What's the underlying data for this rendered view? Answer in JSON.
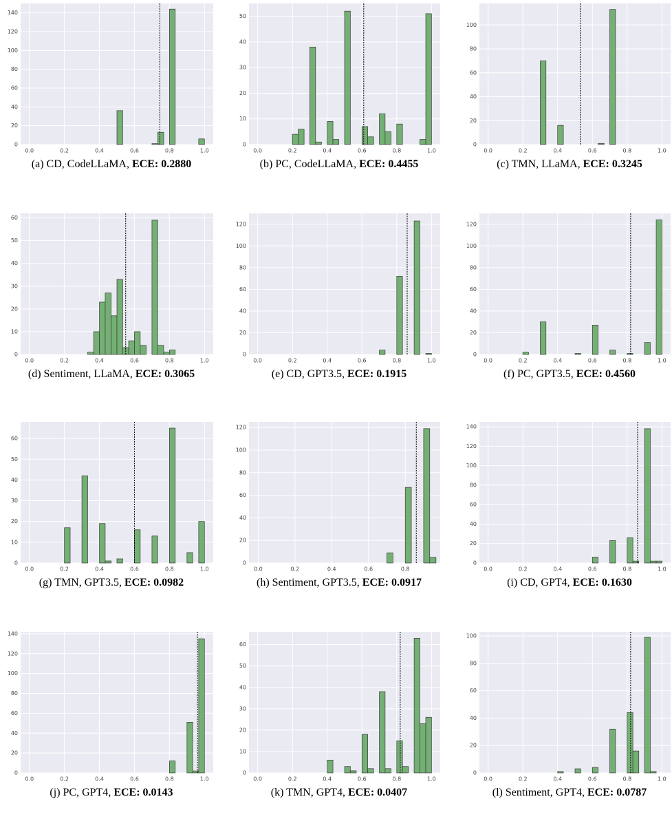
{
  "chart_data": [
    {
      "type": "histogram",
      "caption": "(a) CD, CodeLLaMA,",
      "ece": "ECE: 0.2880",
      "color": "#74b074",
      "bins": [
        0.5,
        0.533,
        0.7,
        0.733,
        0.767,
        0.8,
        0.833,
        0.967,
        1.0
      ],
      "counts": [
        36,
        0,
        1,
        13,
        0,
        144,
        0,
        6
      ],
      "reference_line": 0.745,
      "xlim": [
        -0.05,
        1.05
      ],
      "ylim": [
        0,
        150
      ],
      "xticks": [
        {
          "value": 0,
          "label": "0.0"
        },
        0.2,
        0.4,
        0.6,
        0.8,
        {
          "value": 1,
          "label": "1.0"
        }
      ],
      "yticks": [
        0,
        20,
        40,
        60,
        80,
        100,
        120,
        140
      ],
      "grid": true
    },
    {
      "type": "histogram",
      "caption": "(b) PC, CodeLLaMA,",
      "ece": "ECE: 0.4455",
      "color": "#74b074",
      "bins": [
        0.2,
        0.233,
        0.267,
        0.3,
        0.333,
        0.367,
        0.4,
        0.433,
        0.467,
        0.5,
        0.533,
        0.6,
        0.633,
        0.667,
        0.7,
        0.733,
        0.767,
        0.8,
        0.833,
        0.933,
        0.967,
        1.0
      ],
      "counts": [
        4,
        6,
        0,
        38,
        1,
        0,
        9,
        2,
        0,
        52,
        0,
        7,
        3,
        0,
        12,
        5,
        0,
        8,
        0,
        2,
        51
      ],
      "reference_line": 0.61,
      "xlim": [
        -0.05,
        1.05
      ],
      "ylim": [
        0,
        55
      ],
      "xticks": [
        {
          "value": 0,
          "label": "0.0"
        },
        0.2,
        0.4,
        0.6,
        0.8,
        {
          "value": 1,
          "label": "1.0"
        }
      ],
      "yticks": [
        0,
        10,
        20,
        30,
        40,
        50
      ],
      "grid": true
    },
    {
      "type": "histogram",
      "caption": "(c) TMN, LLaMA,",
      "ece": "ECE: 0.3245",
      "color": "#74b074",
      "bins": [
        0.3,
        0.333,
        0.4,
        0.433,
        0.633,
        0.667,
        0.7,
        0.733
      ],
      "counts": [
        70,
        0,
        16,
        0,
        1,
        0,
        113
      ],
      "reference_line": 0.53,
      "xlim": [
        -0.05,
        1.05
      ],
      "ylim": [
        0,
        118
      ],
      "xticks": [
        {
          "value": 0,
          "label": "0.0"
        },
        0.2,
        0.4,
        0.6,
        0.8,
        {
          "value": 1,
          "label": "1.0"
        }
      ],
      "yticks": [
        0,
        20,
        40,
        60,
        80,
        100
      ],
      "grid": true
    },
    {
      "type": "histogram",
      "caption": "(d) Sentiment, LLaMA,",
      "ece": "ECE: 0.3065",
      "color": "#74b074",
      "bins": [
        0.333,
        0.367,
        0.4,
        0.433,
        0.467,
        0.5,
        0.533,
        0.567,
        0.6,
        0.633,
        0.667,
        0.7,
        0.733,
        0.767,
        0.8,
        0.833
      ],
      "counts": [
        1,
        10,
        23,
        27,
        17,
        33,
        3,
        6,
        10,
        4,
        0,
        59,
        4,
        1,
        2
      ],
      "reference_line": 0.55,
      "xlim": [
        -0.05,
        1.05
      ],
      "ylim": [
        0,
        62
      ],
      "xticks": [
        {
          "value": 0,
          "label": "0.0"
        },
        0.2,
        0.4,
        0.6,
        0.8,
        {
          "value": 1,
          "label": "1.0"
        }
      ],
      "yticks": [
        0,
        10,
        20,
        30,
        40,
        50,
        60
      ],
      "grid": true
    },
    {
      "type": "histogram",
      "caption": "(e) CD, GPT3.5,",
      "ece": "ECE: 0.1915",
      "color": "#74b074",
      "bins": [
        0.7,
        0.733,
        0.8,
        0.833,
        0.9,
        0.933,
        0.967,
        1.0
      ],
      "counts": [
        4,
        0,
        72,
        0,
        123,
        0,
        1
      ],
      "reference_line": 0.86,
      "xlim": [
        -0.05,
        1.05
      ],
      "ylim": [
        0,
        130
      ],
      "xticks": [
        {
          "value": 0,
          "label": "0.0"
        },
        0.2,
        0.4,
        0.6,
        0.8,
        {
          "value": 1,
          "label": "1.0"
        }
      ],
      "yticks": [
        0,
        20,
        40,
        60,
        80,
        100,
        120
      ],
      "grid": true
    },
    {
      "type": "histogram",
      "caption": "(f) PC, GPT3.5,",
      "ece": "ECE: 0.4560",
      "color": "#74b074",
      "bins": [
        0.2,
        0.233,
        0.3,
        0.333,
        0.5,
        0.533,
        0.6,
        0.633,
        0.7,
        0.733,
        0.8,
        0.833,
        0.9,
        0.933,
        0.967,
        1.0
      ],
      "counts": [
        2,
        0,
        30,
        0,
        1,
        0,
        27,
        0,
        4,
        0,
        1,
        0,
        11,
        0,
        124
      ],
      "reference_line": 0.82,
      "xlim": [
        -0.05,
        1.05
      ],
      "ylim": [
        0,
        130
      ],
      "xticks": [
        {
          "value": 0,
          "label": "0.0"
        },
        0.2,
        0.4,
        0.6,
        0.8,
        {
          "value": 1,
          "label": "1.0"
        }
      ],
      "yticks": [
        0,
        20,
        40,
        60,
        80,
        100,
        120
      ],
      "grid": true
    },
    {
      "type": "histogram",
      "caption": "(g) TMN, GPT3.5,",
      "ece": "ECE: 0.0982",
      "color": "#74b074",
      "bins": [
        0.2,
        0.233,
        0.3,
        0.333,
        0.4,
        0.433,
        0.467,
        0.5,
        0.533,
        0.6,
        0.633,
        0.7,
        0.733,
        0.8,
        0.833,
        0.9,
        0.933,
        0.967,
        1.0
      ],
      "counts": [
        17,
        0,
        42,
        0,
        19,
        1,
        0,
        2,
        0,
        16,
        0,
        13,
        0,
        65,
        0,
        5,
        0,
        20
      ],
      "reference_line": 0.6,
      "xlim": [
        -0.05,
        1.05
      ],
      "ylim": [
        0,
        68
      ],
      "xticks": [
        {
          "value": 0,
          "label": "0.0"
        },
        0.2,
        0.4,
        0.6,
        0.8,
        {
          "value": 1,
          "label": "1.0"
        }
      ],
      "yticks": [
        0,
        10,
        20,
        30,
        40,
        50,
        60
      ],
      "grid": true
    },
    {
      "type": "histogram",
      "caption": "(h) Sentiment, GPT3.5,",
      "ece": "ECE: 0.0917",
      "color": "#74b074",
      "bins": [
        0.7,
        0.733,
        0.8,
        0.833,
        0.9,
        0.933,
        0.967
      ],
      "counts": [
        9,
        0,
        67,
        0,
        119,
        5
      ],
      "reference_line": 0.86,
      "xlim": [
        -0.05,
        0.99
      ],
      "ylim": [
        0,
        125
      ],
      "xticks": [
        {
          "value": 0,
          "label": "0.0"
        },
        0.2,
        0.4,
        0.6,
        0.8
      ],
      "yticks": [
        0,
        20,
        40,
        60,
        80,
        100,
        120
      ],
      "grid": true
    },
    {
      "type": "histogram",
      "caption": "(i) CD, GPT4,",
      "ece": "ECE: 0.1630",
      "color": "#74b074",
      "bins": [
        0.6,
        0.633,
        0.7,
        0.733,
        0.8,
        0.833,
        0.867,
        0.9,
        0.933,
        0.967,
        1.0
      ],
      "counts": [
        6,
        0,
        23,
        0,
        26,
        2,
        0,
        138,
        2,
        2
      ],
      "reference_line": 0.86,
      "xlim": [
        -0.05,
        1.05
      ],
      "ylim": [
        0,
        145
      ],
      "xticks": [
        {
          "value": 0,
          "label": "0.0"
        },
        0.2,
        0.4,
        0.6,
        0.8,
        {
          "value": 1,
          "label": "1.0"
        }
      ],
      "yticks": [
        0,
        20,
        40,
        60,
        80,
        100,
        120,
        140
      ],
      "grid": true
    },
    {
      "type": "histogram",
      "caption": "(j) PC, GPT4,",
      "ece": "ECE: 0.0143",
      "color": "#74b074",
      "bins": [
        0.8,
        0.833,
        0.9,
        0.933,
        0.967,
        1.0
      ],
      "counts": [
        12,
        0,
        51,
        2,
        135
      ],
      "reference_line": 0.96,
      "xlim": [
        -0.05,
        1.05
      ],
      "ylim": [
        0,
        142
      ],
      "xticks": [
        {
          "value": 0,
          "label": "0.0"
        },
        0.2,
        0.4,
        0.6,
        0.8,
        {
          "value": 1,
          "label": "1.0"
        }
      ],
      "yticks": [
        0,
        20,
        40,
        60,
        80,
        100,
        120,
        140
      ],
      "grid": true
    },
    {
      "type": "histogram",
      "caption": "(k) TMN, GPT4,",
      "ece": "ECE: 0.0407",
      "color": "#74b074",
      "bins": [
        0.4,
        0.433,
        0.5,
        0.533,
        0.567,
        0.6,
        0.633,
        0.667,
        0.7,
        0.733,
        0.767,
        0.8,
        0.833,
        0.867,
        0.9,
        0.933,
        0.967,
        1.0
      ],
      "counts": [
        6,
        0,
        3,
        1,
        0,
        18,
        2,
        0,
        38,
        2,
        0,
        15,
        3,
        0,
        63,
        23,
        26
      ],
      "reference_line": 0.82,
      "xlim": [
        -0.05,
        1.05
      ],
      "ylim": [
        0,
        66
      ],
      "xticks": [
        {
          "value": 0,
          "label": "0.0"
        },
        0.2,
        0.4,
        0.6,
        0.8,
        {
          "value": 1,
          "label": "1.0"
        }
      ],
      "yticks": [
        0,
        10,
        20,
        30,
        40,
        50,
        60
      ],
      "grid": true
    },
    {
      "type": "histogram",
      "caption": "(l) Sentiment, GPT4,",
      "ece": "ECE: 0.0787",
      "color": "#74b074",
      "bins": [
        0.4,
        0.433,
        0.5,
        0.533,
        0.6,
        0.633,
        0.7,
        0.733,
        0.8,
        0.833,
        0.867,
        0.9,
        0.933,
        0.967
      ],
      "counts": [
        1,
        0,
        3,
        0,
        4,
        0,
        32,
        0,
        44,
        16,
        0,
        99,
        1
      ],
      "reference_line": 0.82,
      "xlim": [
        -0.05,
        1.05
      ],
      "ylim": [
        0,
        103
      ],
      "xticks": [
        {
          "value": 0,
          "label": "0.0"
        },
        0.2,
        0.4,
        0.6,
        0.8,
        {
          "value": 1,
          "label": "1.0"
        }
      ],
      "yticks": [
        0,
        20,
        40,
        60,
        80,
        100
      ],
      "grid": true
    }
  ]
}
